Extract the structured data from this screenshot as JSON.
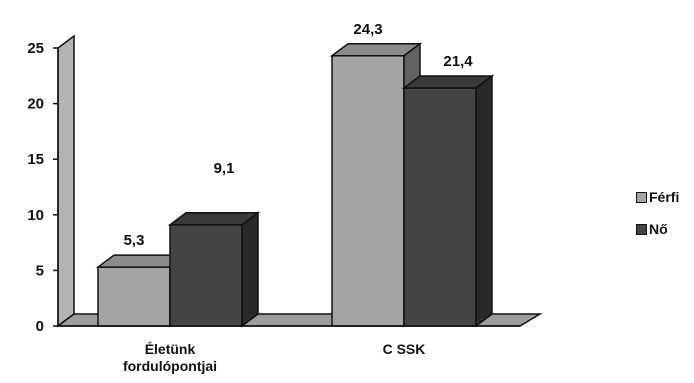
{
  "chart_data": {
    "type": "bar",
    "title": "",
    "xlabel": "",
    "ylabel": "",
    "categories": [
      [
        "Életünk",
        "fordulópontjai"
      ],
      [
        "C SSK"
      ]
    ],
    "series": [
      {
        "name": "Férfi",
        "values": [
          5.3,
          24.3
        ],
        "labels": [
          "5,3",
          "24,3"
        ],
        "color": "#a4a4a4"
      },
      {
        "name": "Nő",
        "values": [
          9.1,
          21.4
        ],
        "labels": [
          "9,1",
          "21,4"
        ],
        "color": "#444444"
      }
    ],
    "ylim": [
      0,
      25
    ],
    "yticks": [
      "0",
      "5",
      "10",
      "15",
      "20",
      "25"
    ],
    "three_d": true,
    "grid": false,
    "legend_position": "right"
  }
}
